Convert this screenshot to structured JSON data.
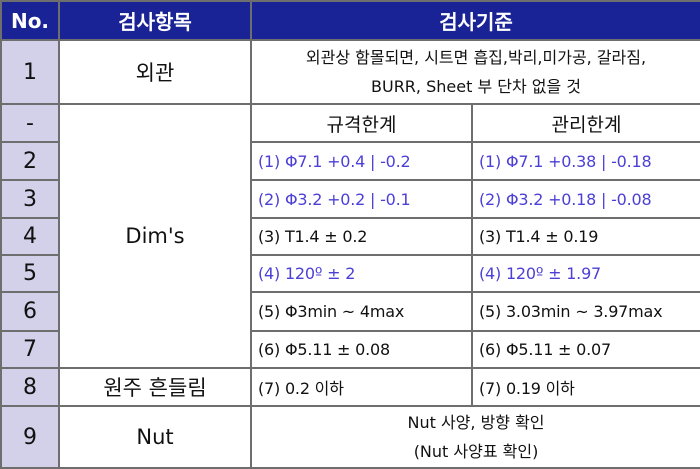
{
  "header": {
    "no": "No.",
    "item": "검사항목",
    "criteria": "검사기준"
  },
  "rows": {
    "r1": {
      "no": "1",
      "item": "외관",
      "line1": "외관상 함몰되면, 시트면 흡집,박리,미가공, 갈라짐,",
      "line2": "BURR, Sheet 부 단차 없을 것"
    },
    "sub": {
      "no": "-",
      "spec_header": "규격한계",
      "mgmt_header": "관리한계"
    },
    "dims_item": "Dim's",
    "r2": {
      "no": "2",
      "spec": "(1) Φ7.1 +0.4 | -0.2",
      "mgmt": "(1) Φ7.1 +0.38 | -0.18"
    },
    "r3": {
      "no": "3",
      "spec": "(2) Φ3.2 +0.2 | -0.1",
      "mgmt": "(2) Φ3.2 +0.18 | -0.08"
    },
    "r4": {
      "no": "4",
      "spec": "(3) T1.4 ± 0.2",
      "mgmt": "(3) T1.4 ± 0.19"
    },
    "r5": {
      "no": "5",
      "spec": "(4) 120º ± 2",
      "mgmt": "(4) 120º ± 1.97"
    },
    "r6": {
      "no": "6",
      "spec": "(5) Φ3min ~ 4max",
      "mgmt": "(5) 3.03min ~ 3.97max"
    },
    "r7": {
      "no": "7",
      "spec": "(6) Φ5.11 ± 0.08",
      "mgmt": "(6) Φ5.11 ± 0.07"
    },
    "r8": {
      "no": "8",
      "item": "원주 흔들림",
      "spec": "(7) 0.2 이하",
      "mgmt": "(7) 0.19 이하"
    },
    "r9": {
      "no": "9",
      "item": "Nut",
      "line1": "Nut 사양, 방향 확인",
      "line2": "(Nut 사양표 확인)"
    }
  },
  "colors": {
    "header_bg": "#1a2395",
    "number_bg": "#d3d0ea",
    "highlight_text": "#4b3fd6",
    "border": "#6e6e6e"
  }
}
